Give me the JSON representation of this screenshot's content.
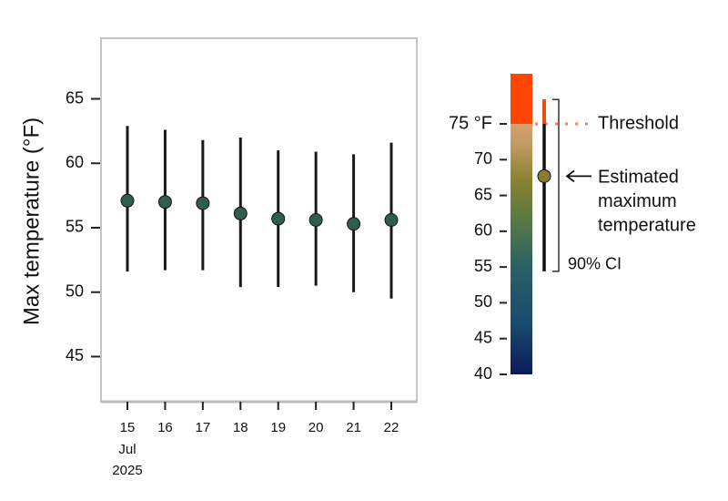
{
  "chart_data": {
    "type": "errorbar",
    "y_label": "Max temperature (°F)",
    "categories": [
      "15",
      "16",
      "17",
      "18",
      "19",
      "20",
      "21",
      "22"
    ],
    "x_sublabels": [
      "Jul",
      "2025"
    ],
    "values": [
      57.1,
      57.0,
      56.9,
      56.1,
      55.7,
      55.6,
      55.3,
      55.6
    ],
    "lower": [
      51.6,
      51.7,
      51.7,
      50.4,
      50.4,
      50.5,
      50.0,
      49.5
    ],
    "upper": [
      62.9,
      62.6,
      61.8,
      62.0,
      61.0,
      60.9,
      60.7,
      61.6
    ],
    "color": "#2f5e4e",
    "ylim": [
      41.5,
      69.7
    ],
    "yticks": [
      45,
      50,
      55,
      60,
      65
    ],
    "legend": {
      "lim": [
        40,
        82
      ],
      "ticks": [
        40,
        45,
        50,
        55,
        60,
        65,
        70,
        {
          "value": 75,
          "label": "75 °F"
        }
      ],
      "gradient": [
        {
          "value": 40,
          "color": "#0a1a5c"
        },
        {
          "value": 47,
          "color": "#1a4a6e"
        },
        {
          "value": 55,
          "color": "#2a6066"
        },
        {
          "value": 62,
          "color": "#5c7a42"
        },
        {
          "value": 67,
          "color": "#8a8030"
        },
        {
          "value": 72,
          "color": "#c09a62"
        },
        {
          "value": 75,
          "color": "#d6a070"
        },
        {
          "value": 75,
          "color": "#ff4500"
        },
        {
          "value": 82,
          "color": "#ff4500"
        }
      ],
      "threshold": 75,
      "threshold_label": "Threshold",
      "threshold_color": "#ff7f50",
      "threshold_text_color": "#ff0000",
      "sample": {
        "value": 67.7,
        "lower": 54.4,
        "upper": 78.4,
        "color": "#8a7a30"
      },
      "sample_label": [
        "Estimated",
        "maximum",
        "temperature"
      ],
      "ci_label": "90% CI"
    }
  }
}
